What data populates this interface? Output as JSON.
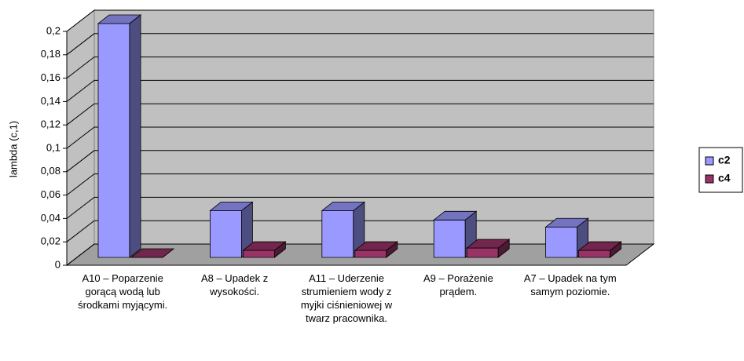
{
  "chart_data": {
    "type": "bar3d",
    "y_axis_label": "lambda (c,1)",
    "categories": [
      "A10 – Poparzenie gorącą wodą lub środkami myjącymi.",
      "A8 – Upadek z wysokości.",
      "A11 – Uderzenie strumieniem wody z myjki ciśnieniowej w twarz pracownika.",
      "A9 – Porażenie prądem.",
      "A7 – Upadek na tym samym poziomie."
    ],
    "series": [
      {
        "name": "c2",
        "color": "#9999ff",
        "values": [
          0.2,
          0.04,
          0.04,
          0.032,
          0.026
        ]
      },
      {
        "name": "c4",
        "color": "#993366",
        "values": [
          0,
          0.006,
          0.006,
          0.008,
          0.006
        ]
      }
    ],
    "ylim": [
      0,
      0.2
    ],
    "yticks": [
      0,
      {
        "value": 0.02,
        "label": "0,02"
      },
      {
        "value": 0.04,
        "label": "0,04"
      },
      {
        "value": 0.06,
        "label": "0,06"
      },
      {
        "value": 0.08,
        "label": "0,08"
      },
      {
        "value": 0.1,
        "label": "0,1"
      },
      {
        "value": 0.12,
        "label": "0,12"
      },
      {
        "value": 0.14,
        "label": "0,14"
      },
      {
        "value": 0.16,
        "label": "0,16"
      },
      {
        "value": 0.18,
        "label": "0,18"
      },
      {
        "value": 0.2,
        "label": "0,2"
      }
    ],
    "grid": true,
    "legend": "right"
  }
}
